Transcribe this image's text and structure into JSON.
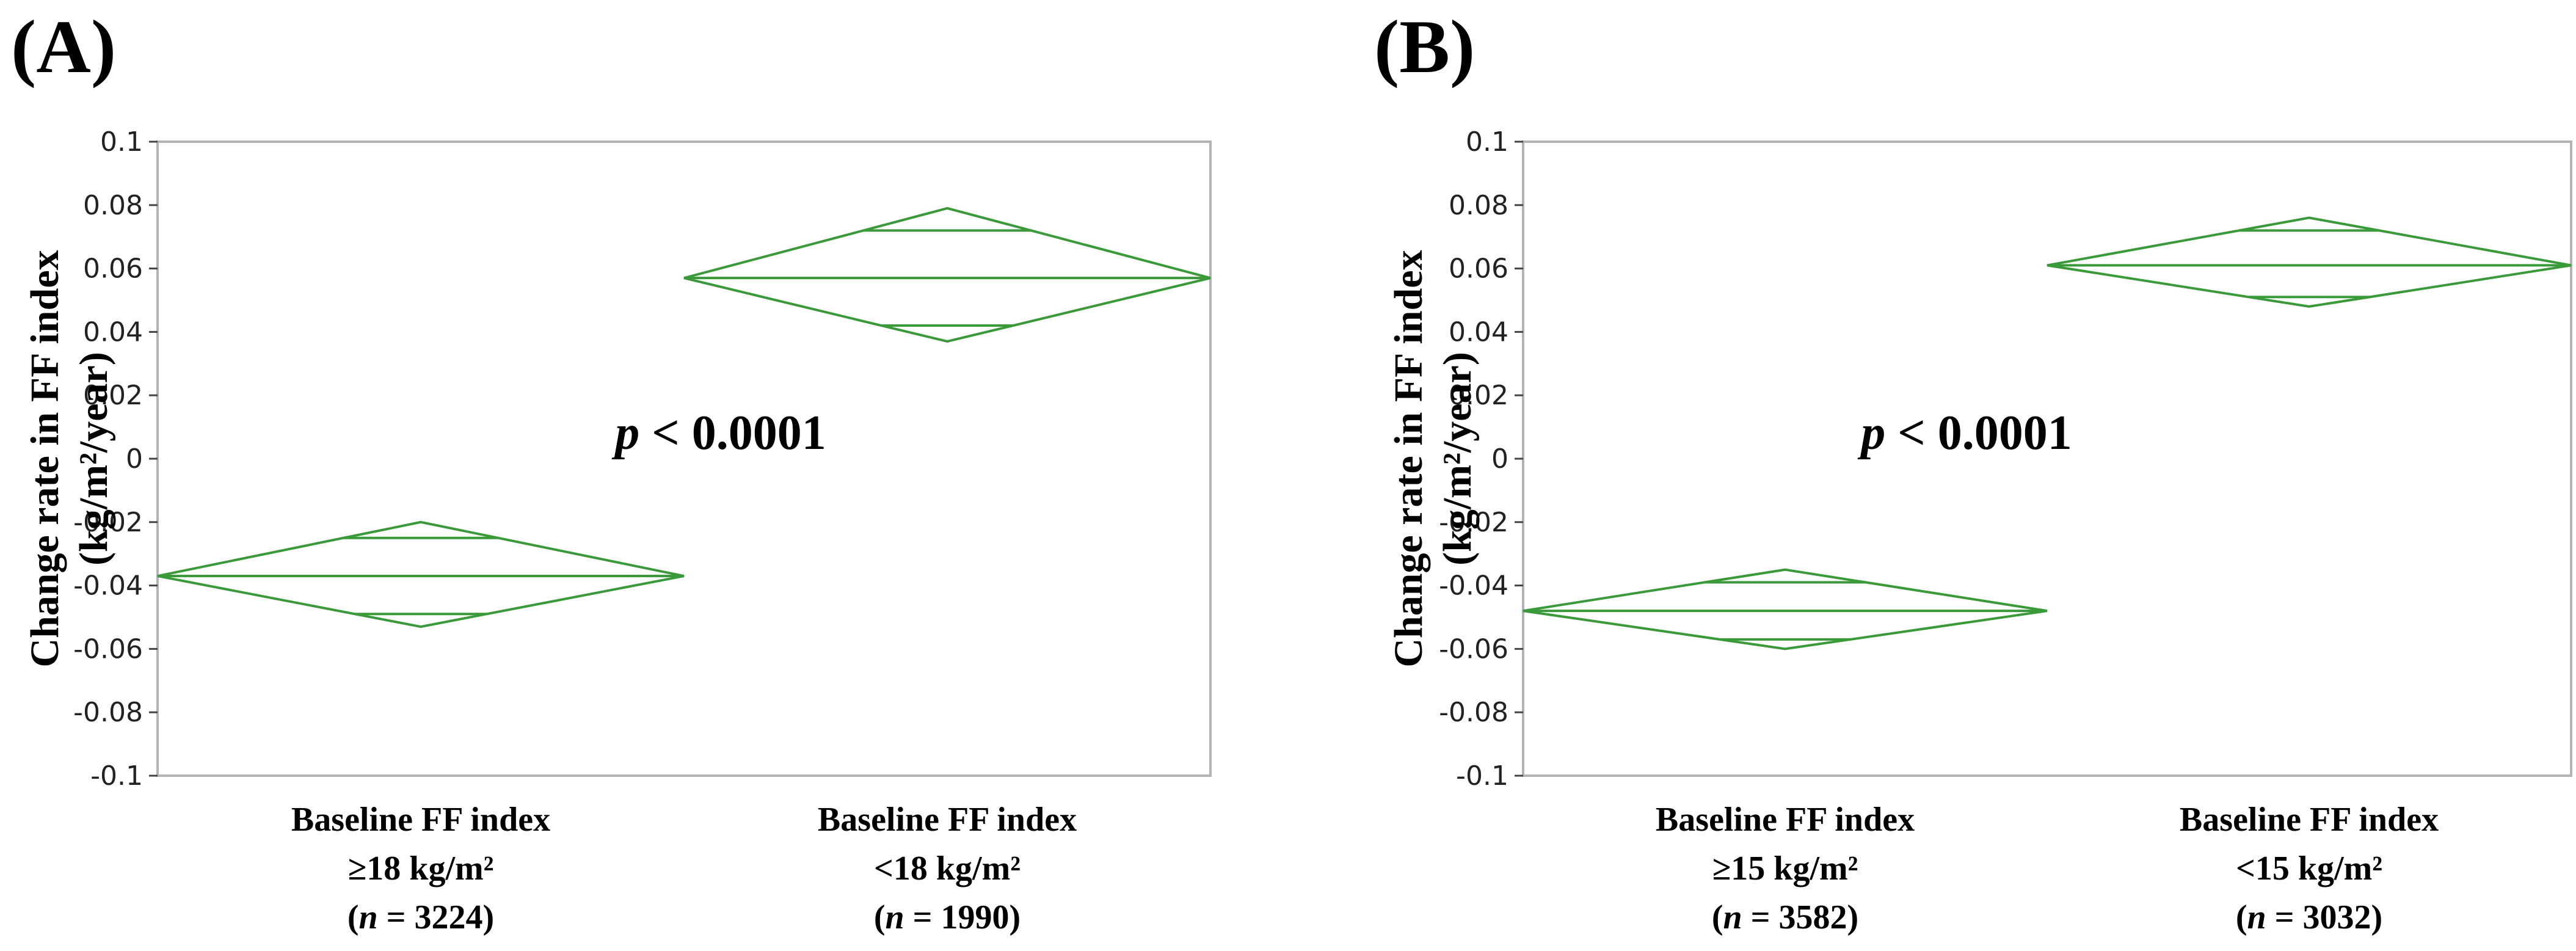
{
  "colors": {
    "diamond": "#3a9a3a",
    "frame": "#b3b3b3",
    "text": "#000000"
  },
  "chart_data": [
    {
      "type": "diamond",
      "panel_label": "(A)",
      "title": "",
      "ylabel_line1": "Change rate in FF index",
      "ylabel_line2": "(kg/m²/year)",
      "ylim": [
        -0.1,
        0.1
      ],
      "yticks": [
        {
          "value": 0.1,
          "label": "0.1"
        },
        {
          "value": 0.08,
          "label": "0.08"
        },
        {
          "value": 0.06,
          "label": "0.06"
        },
        {
          "value": 0.04,
          "label": "0.04"
        },
        {
          "value": 0.02,
          "label": "0.02"
        },
        {
          "value": 0,
          "label": "0"
        },
        {
          "value": -0.02,
          "label": "-0.02"
        },
        {
          "value": -0.04,
          "label": "-0.04"
        },
        {
          "value": -0.06,
          "label": "-0.06"
        },
        {
          "value": -0.08,
          "label": "-0.08"
        },
        {
          "value": -0.1,
          "label": "-0.1"
        }
      ],
      "annotation": {
        "p": "p",
        "rest": " < 0.0001"
      },
      "categories": [
        {
          "line1": "Baseline FF index",
          "line2": "≥18 kg/m²",
          "n_label": "n",
          "n_value": " = 3224)",
          "n_open": "(",
          "mean": -0.037,
          "upper": -0.02,
          "lower": -0.053,
          "overlap_upper": -0.025,
          "overlap_lower": -0.049
        },
        {
          "line1": "Baseline FF index",
          "line2": "<18 kg/m²",
          "n_label": "n",
          "n_value": " = 1990)",
          "n_open": "(",
          "mean": 0.057,
          "upper": 0.079,
          "lower": 0.037,
          "overlap_upper": 0.072,
          "overlap_lower": 0.042
        }
      ]
    },
    {
      "type": "diamond",
      "panel_label": "(B)",
      "title": "",
      "ylabel_line1": "Change rate in FF index",
      "ylabel_line2": "(kg/m²/year)",
      "ylim": [
        -0.1,
        0.1
      ],
      "yticks": [
        {
          "value": 0.1,
          "label": "0.1"
        },
        {
          "value": 0.08,
          "label": "0.08"
        },
        {
          "value": 0.06,
          "label": "0.06"
        },
        {
          "value": 0.04,
          "label": "0.04"
        },
        {
          "value": 0.02,
          "label": "0.02"
        },
        {
          "value": 0,
          "label": "0"
        },
        {
          "value": -0.02,
          "label": "-0.02"
        },
        {
          "value": -0.04,
          "label": "-0.04"
        },
        {
          "value": -0.06,
          "label": "-0.06"
        },
        {
          "value": -0.08,
          "label": "-0.08"
        },
        {
          "value": -0.1,
          "label": "-0.1"
        }
      ],
      "annotation": {
        "p": "p",
        "rest": " < 0.0001"
      },
      "categories": [
        {
          "line1": "Baseline FF index",
          "line2": "≥15 kg/m²",
          "n_label": "n",
          "n_value": " = 3582)",
          "n_open": "(",
          "mean": -0.048,
          "upper": -0.035,
          "lower": -0.06,
          "overlap_upper": -0.039,
          "overlap_lower": -0.057
        },
        {
          "line1": "Baseline FF index",
          "line2": "<15 kg/m²",
          "n_label": "n",
          "n_value": " = 3032)",
          "n_open": "(",
          "mean": 0.061,
          "upper": 0.076,
          "lower": 0.048,
          "overlap_upper": 0.072,
          "overlap_lower": 0.051
        }
      ]
    }
  ]
}
